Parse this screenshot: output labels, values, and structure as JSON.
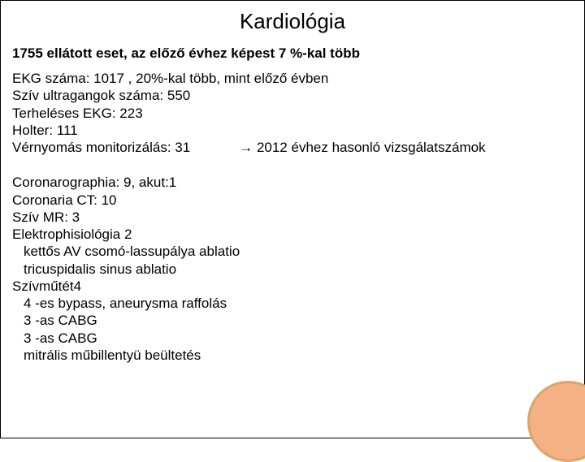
{
  "title": "Kardiológia",
  "subtitle": "1755 ellátott eset, az előző évhez képest  7  %-kal több",
  "block1": {
    "ekg": "EKG  száma: 1017 , 20%-kal több, mint előző évben",
    "ultra": "Szív ultragangok száma: 550",
    "stress": "Terheléses EKG: 223",
    "holter": "Holter: 111",
    "bp_left": "Vérnyomás monitorizálás: 31",
    "bp_right": "→ 2012 évhez hasonló vizsgálatszámok"
  },
  "block2": {
    "l1": "Coronarographia: 9, akut:1",
    "l2": "Coronaria CT: 10",
    "l3": "Szív MR: 3",
    "l4": "Elektrophisiológia 2",
    "l4a": "kettős AV csomó-lassupálya ablatio",
    "l4b": "tricuspidalis sinus ablatio",
    "l5": "Szívműtét4",
    "l5a": "4 -es bypass, aneurysma raffolás",
    "l5b": "3 -as CABG",
    "l5c": "3 -as CABG",
    "l5d": "mitrális műbillentyü beültetés"
  },
  "circle_color": "#f4b183",
  "circle_border": "#dfa36a"
}
